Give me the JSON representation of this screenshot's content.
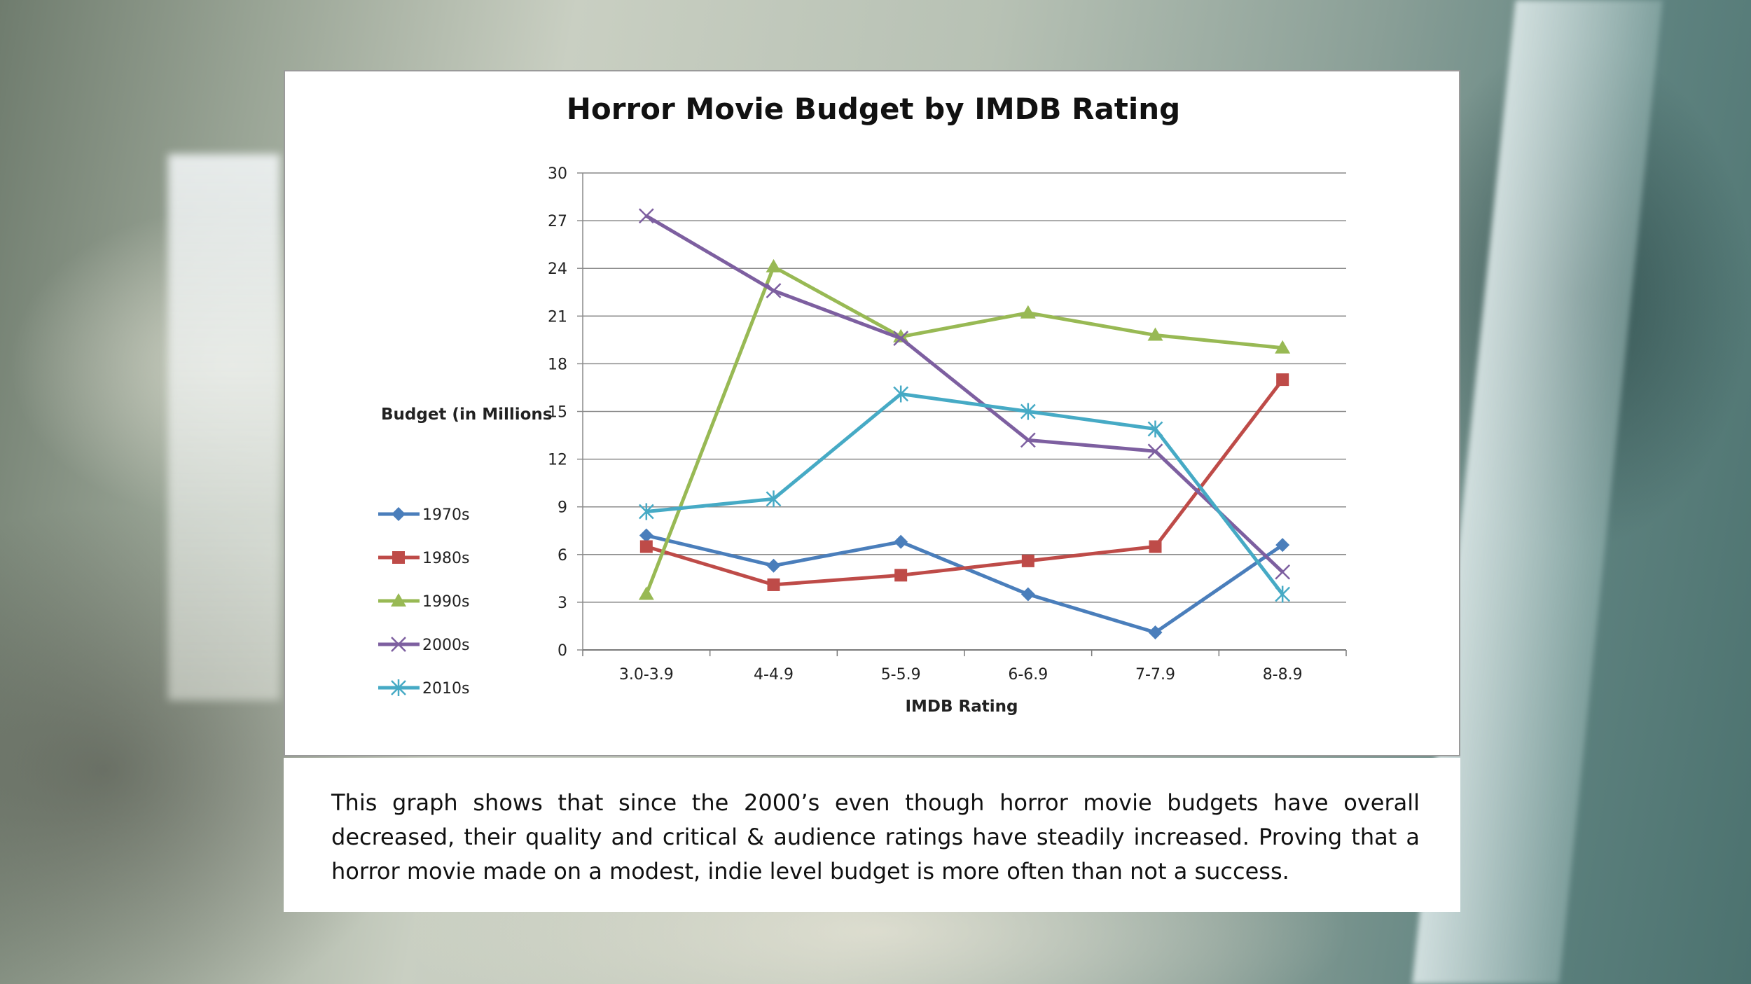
{
  "chart_data": {
    "type": "line",
    "title": "Horror Movie Budget by IMDB Rating",
    "xlabel": "IMDB Rating",
    "ylabel": "Budget (in Millions",
    "categories": [
      "3.0-3.9",
      "4-4.9",
      "5-5.9",
      "6-6.9",
      "7-7.9",
      "8-8.9"
    ],
    "ylim": [
      0,
      30
    ],
    "yticks": [
      0,
      3,
      6,
      9,
      12,
      15,
      18,
      21,
      24,
      27,
      30
    ],
    "grid": true,
    "legend": "left",
    "series": [
      {
        "name": "1970s",
        "color": "#4a7ebb",
        "marker": "diamond",
        "values": [
          7.2,
          5.3,
          6.8,
          3.5,
          1.1,
          6.6
        ]
      },
      {
        "name": "1980s",
        "color": "#be4b48",
        "marker": "square",
        "values": [
          6.5,
          4.1,
          4.7,
          5.6,
          6.5,
          17.0
        ]
      },
      {
        "name": "1990s",
        "color": "#98b954",
        "marker": "triangle",
        "values": [
          3.5,
          24.1,
          19.7,
          21.2,
          19.8,
          19.0
        ]
      },
      {
        "name": "2000s",
        "color": "#7d5fa0",
        "marker": "x",
        "values": [
          27.3,
          22.6,
          19.6,
          13.2,
          12.5,
          4.9
        ]
      },
      {
        "name": "2010s",
        "color": "#46aac5",
        "marker": "star",
        "values": [
          8.7,
          9.5,
          16.1,
          15.0,
          13.9,
          3.5
        ]
      }
    ]
  },
  "caption": {
    "text": "This graph shows that since the 2000’s even though horror movie budgets have overall decreased, their quality and critical & audience ratings have steadily increased. Proving that a horror movie made on a modest, indie level budget is more often than not a success."
  }
}
